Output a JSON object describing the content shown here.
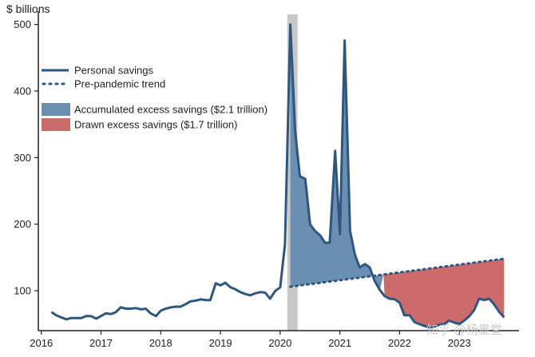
{
  "chart_data": {
    "type": "line",
    "ylabel": "$ billions",
    "ylim": [
      40,
      520
    ],
    "xlim": [
      2015.95,
      2024.0
    ],
    "y_ticks": [
      100,
      200,
      300,
      400,
      500
    ],
    "x_ticks": [
      2016,
      2017,
      2018,
      2019,
      2020,
      2021,
      2022,
      2023
    ],
    "x_tick_labels": [
      "2016",
      "2017",
      "2018",
      "2019",
      "2020",
      "2021",
      "2022",
      "2023"
    ],
    "recession_shading": {
      "start": 2020.12,
      "end": 2020.29,
      "color": "#c8c8c8"
    },
    "colors": {
      "line": "#2e567e",
      "accumulated_fill": "#6b8fb3",
      "drawn_fill": "#cd6b6b",
      "axis": "#222222"
    },
    "legend": {
      "placement": "top-left",
      "items": [
        {
          "label": "Personal savings",
          "style": "solid-line"
        },
        {
          "label": "Pre-pandemic trend",
          "style": "dotted-line"
        },
        {
          "label": "Accumulated excess savings ($2.1 trillion)",
          "style": "blue-patch"
        },
        {
          "label": "Drawn excess savings ($1.7 trillion)",
          "style": "red-patch"
        }
      ]
    },
    "series": [
      {
        "name": "Personal savings",
        "x": [
          2016.17,
          2016.25,
          2016.33,
          2016.42,
          2016.5,
          2016.58,
          2016.67,
          2016.75,
          2016.83,
          2016.92,
          2017.0,
          2017.08,
          2017.17,
          2017.25,
          2017.33,
          2017.42,
          2017.5,
          2017.58,
          2017.67,
          2017.75,
          2017.83,
          2017.92,
          2018.0,
          2018.08,
          2018.17,
          2018.25,
          2018.33,
          2018.42,
          2018.5,
          2018.58,
          2018.67,
          2018.75,
          2018.83,
          2018.92,
          2019.0,
          2019.08,
          2019.17,
          2019.25,
          2019.33,
          2019.42,
          2019.5,
          2019.58,
          2019.67,
          2019.75,
          2019.83,
          2019.92,
          2020.0,
          2020.08,
          2020.17,
          2020.25,
          2020.33,
          2020.42,
          2020.5,
          2020.58,
          2020.67,
          2020.75,
          2020.83,
          2020.92,
          2021.0,
          2021.08,
          2021.17,
          2021.25,
          2021.33,
          2021.42,
          2021.5,
          2021.58,
          2021.67,
          2021.75,
          2021.83,
          2021.92,
          2022.0,
          2022.08,
          2022.17,
          2022.25,
          2022.33,
          2022.42,
          2022.5,
          2022.58,
          2022.67,
          2022.75,
          2022.83,
          2022.92,
          2023.0,
          2023.08,
          2023.17,
          2023.25,
          2023.33,
          2023.42,
          2023.5,
          2023.58,
          2023.67,
          2023.75
        ],
        "values": [
          68,
          63,
          60,
          57,
          59,
          59,
          59,
          62,
          62,
          58,
          62,
          66,
          65,
          68,
          75,
          73,
          73,
          74,
          72,
          73,
          66,
          62,
          70,
          73,
          75,
          76,
          76,
          80,
          84,
          85,
          87,
          86,
          86,
          111,
          108,
          112,
          105,
          102,
          98,
          95,
          93,
          96,
          98,
          97,
          88,
          100,
          105,
          170,
          500,
          340,
          272,
          268,
          200,
          190,
          183,
          172,
          172,
          310,
          185,
          476,
          190,
          155,
          135,
          140,
          135,
          115,
          101,
          92,
          88,
          87,
          82,
          63,
          63,
          53,
          50,
          47,
          45,
          46,
          49,
          50,
          55,
          52,
          50,
          55,
          62,
          71,
          88,
          86,
          88,
          80,
          68,
          60
        ]
      },
      {
        "name": "Pre-pandemic trend",
        "x": [
          2020.17,
          2023.75
        ],
        "values": [
          106,
          148
        ]
      }
    ],
    "shaded_regions": [
      {
        "name": "Accumulated excess savings ($2.1 trillion)",
        "x_start": 2020.17,
        "x_end": 2021.73
      },
      {
        "name": "Drawn excess savings ($1.7 trillion)",
        "x_start": 2021.73,
        "x_end": 2023.75
      }
    ]
  },
  "watermark": "知乎 @杨墨堂"
}
